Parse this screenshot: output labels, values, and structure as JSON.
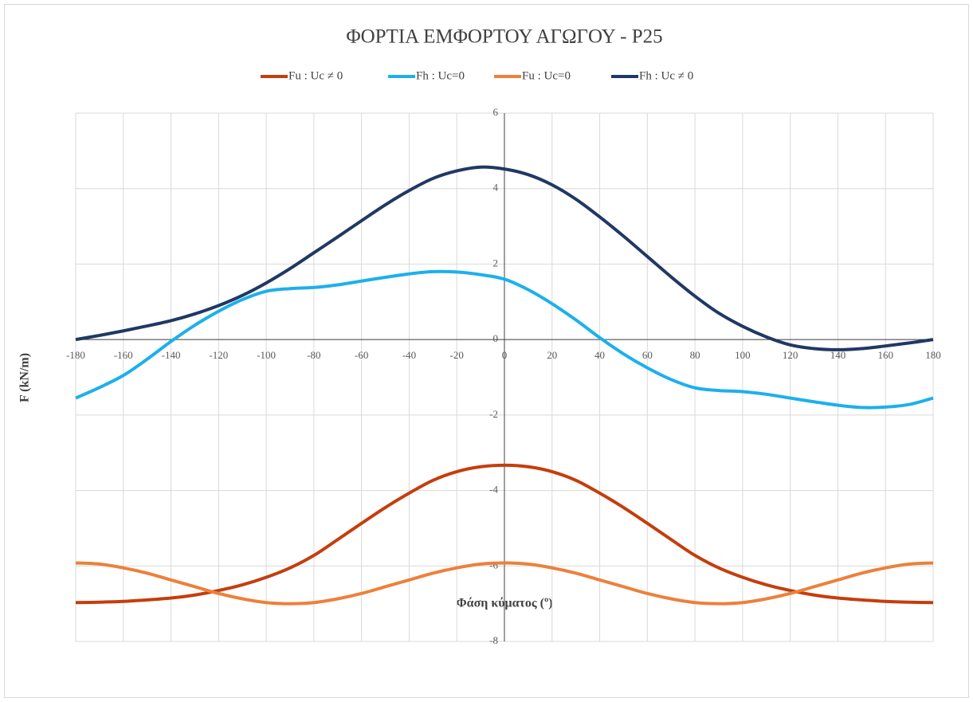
{
  "chart_data": {
    "type": "line",
    "title": "ΦΟΡΤΙΑ ΕΜΦΟΡΤΟΥ ΑΓΩΓΟΥ - P25",
    "xlabel": "Φάση κύματος (º)",
    "ylabel": "F (kN/m)",
    "x": [
      -180,
      -170,
      -160,
      -150,
      -140,
      -130,
      -120,
      -110,
      -100,
      -90,
      -80,
      -70,
      -60,
      -50,
      -40,
      -30,
      -20,
      -10,
      0,
      10,
      20,
      30,
      40,
      50,
      60,
      70,
      80,
      90,
      100,
      110,
      120,
      130,
      140,
      150,
      160,
      170,
      180
    ],
    "series": [
      {
        "name": "Fu : Uc ≠ 0",
        "color": "#c43e0c",
        "values": [
          -6.97,
          -6.96,
          -6.94,
          -6.9,
          -6.85,
          -6.77,
          -6.65,
          -6.5,
          -6.3,
          -6.05,
          -5.72,
          -5.3,
          -4.87,
          -4.45,
          -4.07,
          -3.73,
          -3.5,
          -3.37,
          -3.33,
          -3.37,
          -3.5,
          -3.73,
          -4.07,
          -4.45,
          -4.87,
          -5.3,
          -5.72,
          -6.05,
          -6.3,
          -6.5,
          -6.65,
          -6.77,
          -6.85,
          -6.9,
          -6.94,
          -6.96,
          -6.97
        ]
      },
      {
        "name": "Fh : Uc=0",
        "color": "#1cb0ec",
        "values": [
          -1.55,
          -1.27,
          -0.95,
          -0.52,
          -0.05,
          0.38,
          0.75,
          1.06,
          1.28,
          1.35,
          1.38,
          1.45,
          1.55,
          1.65,
          1.74,
          1.8,
          1.79,
          1.72,
          1.6,
          1.32,
          0.95,
          0.52,
          0.05,
          -0.38,
          -0.75,
          -1.06,
          -1.28,
          -1.35,
          -1.38,
          -1.45,
          -1.55,
          -1.65,
          -1.74,
          -1.8,
          -1.79,
          -1.72,
          -1.55
        ]
      },
      {
        "name": "Fu : Uc=0",
        "color": "#ed803a",
        "values": [
          -5.92,
          -5.95,
          -6.05,
          -6.19,
          -6.37,
          -6.55,
          -6.73,
          -6.87,
          -6.97,
          -7.0,
          -6.97,
          -6.87,
          -6.73,
          -6.55,
          -6.37,
          -6.19,
          -6.05,
          -5.95,
          -5.92,
          -5.95,
          -6.05,
          -6.19,
          -6.37,
          -6.55,
          -6.73,
          -6.87,
          -6.97,
          -7.0,
          -6.97,
          -6.87,
          -6.73,
          -6.55,
          -6.37,
          -6.19,
          -6.05,
          -5.95,
          -5.92
        ]
      },
      {
        "name": "Fh : Uc ≠ 0",
        "color": "#203864",
        "values": [
          0,
          0.11,
          0.23,
          0.36,
          0.5,
          0.68,
          0.9,
          1.17,
          1.5,
          1.88,
          2.3,
          2.72,
          3.15,
          3.57,
          3.95,
          4.27,
          4.47,
          4.57,
          4.52,
          4.37,
          4.1,
          3.72,
          3.25,
          2.74,
          2.2,
          1.66,
          1.15,
          0.7,
          0.35,
          0.07,
          -0.14,
          -0.24,
          -0.27,
          -0.24,
          -0.17,
          -0.09,
          0
        ]
      }
    ],
    "xlim": [
      -180,
      180
    ],
    "xticks": [
      -180,
      -160,
      -140,
      -120,
      -100,
      -80,
      -60,
      -40,
      -20,
      0,
      20,
      40,
      60,
      80,
      100,
      120,
      140,
      160,
      180
    ],
    "ylim": [
      -8,
      6
    ],
    "yticks": [
      -8,
      -6,
      -4,
      -2,
      0,
      2,
      4,
      6
    ],
    "grid": true,
    "legend": "top"
  }
}
